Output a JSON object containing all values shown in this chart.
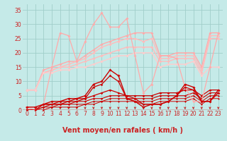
{
  "xlabel": "Vent moyen/en rafales ( km/h )",
  "ylim": [
    0,
    37
  ],
  "xlim": [
    -0.5,
    23.5
  ],
  "yticks": [
    0,
    5,
    10,
    15,
    20,
    25,
    30,
    35
  ],
  "xticks": [
    0,
    1,
    2,
    3,
    4,
    5,
    6,
    7,
    8,
    9,
    10,
    11,
    12,
    13,
    14,
    15,
    16,
    17,
    18,
    19,
    20,
    21,
    22,
    23
  ],
  "background_color": "#c5eae8",
  "grid_color": "#a0ceca",
  "tick_color": "#cc2222",
  "label_color": "#cc2222",
  "lines": [
    {
      "x": [
        0,
        1,
        2,
        3,
        4,
        5,
        6,
        7,
        8,
        9,
        10,
        11,
        12,
        13,
        14,
        15,
        16,
        17,
        18,
        19,
        20,
        21,
        22,
        23
      ],
      "y": [
        1,
        0,
        2,
        15,
        27,
        26,
        17,
        24,
        30,
        34,
        29,
        29,
        32,
        19,
        6,
        9,
        19,
        19,
        18,
        8,
        3,
        3,
        15,
        27
      ],
      "color": "#ffaaaa",
      "lw": 0.9,
      "marker": "D",
      "ms": 2.0,
      "zorder": 6
    },
    {
      "x": [
        0,
        1,
        2,
        3,
        4,
        5,
        6,
        7,
        8,
        9,
        10,
        11,
        12,
        13,
        14,
        15,
        16,
        17,
        18,
        19,
        20,
        21,
        22,
        23
      ],
      "y": [
        7,
        7,
        14,
        15,
        16,
        17,
        17,
        19,
        21,
        23,
        24,
        25,
        26,
        27,
        27,
        27,
        19,
        19,
        20,
        20,
        20,
        15,
        27,
        27
      ],
      "color": "#ffaaaa",
      "lw": 1.0,
      "marker": "D",
      "ms": 2.0,
      "zorder": 3
    },
    {
      "x": [
        0,
        1,
        2,
        3,
        4,
        5,
        6,
        7,
        8,
        9,
        10,
        11,
        12,
        13,
        14,
        15,
        16,
        17,
        18,
        19,
        20,
        21,
        22,
        23
      ],
      "y": [
        7,
        7,
        13,
        14,
        15,
        16,
        17,
        18,
        20,
        22,
        23,
        24,
        25,
        25,
        24,
        25,
        18,
        18,
        19,
        19,
        19,
        14,
        26,
        26
      ],
      "color": "#ffbbbb",
      "lw": 1.0,
      "marker": "D",
      "ms": 2.0,
      "zorder": 3
    },
    {
      "x": [
        0,
        1,
        2,
        3,
        4,
        5,
        6,
        7,
        8,
        9,
        10,
        11,
        12,
        13,
        14,
        15,
        16,
        17,
        18,
        19,
        20,
        21,
        22,
        23
      ],
      "y": [
        7,
        7,
        13,
        14,
        15,
        15,
        16,
        17,
        18,
        19,
        20,
        21,
        22,
        22,
        22,
        22,
        17,
        17,
        18,
        18,
        18,
        13,
        25,
        25
      ],
      "color": "#ffbbbb",
      "lw": 1.0,
      "marker": "D",
      "ms": 2.0,
      "zorder": 3
    },
    {
      "x": [
        0,
        1,
        2,
        3,
        4,
        5,
        6,
        7,
        8,
        9,
        10,
        11,
        12,
        13,
        14,
        15,
        16,
        17,
        18,
        19,
        20,
        21,
        22,
        23
      ],
      "y": [
        7,
        7,
        13,
        13,
        14,
        14,
        15,
        15,
        16,
        17,
        18,
        19,
        19,
        20,
        20,
        20,
        15,
        16,
        16,
        16,
        17,
        12,
        15,
        15
      ],
      "color": "#ffcccc",
      "lw": 1.0,
      "marker": "D",
      "ms": 2.0,
      "zorder": 3
    },
    {
      "x": [
        0,
        1,
        2,
        3,
        4,
        5,
        6,
        7,
        8,
        9,
        10,
        11,
        12,
        13,
        14,
        15,
        16,
        17,
        18,
        19,
        20,
        21,
        22,
        23
      ],
      "y": [
        1,
        1,
        2,
        3,
        3,
        4,
        4,
        5,
        9,
        10,
        14,
        12,
        4,
        3,
        1,
        2,
        2,
        3,
        5,
        9,
        8,
        3,
        3,
        7
      ],
      "color": "#cc0000",
      "lw": 1.0,
      "marker": "D",
      "ms": 2.0,
      "zorder": 7
    },
    {
      "x": [
        0,
        1,
        2,
        3,
        4,
        5,
        6,
        7,
        8,
        9,
        10,
        11,
        12,
        13,
        14,
        15,
        16,
        17,
        18,
        19,
        20,
        21,
        22,
        23
      ],
      "y": [
        0,
        0,
        2,
        2,
        3,
        3,
        4,
        4,
        8,
        9,
        12,
        10,
        4,
        4,
        2,
        2,
        2,
        3,
        5,
        8,
        7,
        3,
        3,
        6
      ],
      "color": "#cc0000",
      "lw": 0.9,
      "marker": "D",
      "ms": 1.8,
      "zorder": 6
    },
    {
      "x": [
        0,
        1,
        2,
        3,
        4,
        5,
        6,
        7,
        8,
        9,
        10,
        11,
        12,
        13,
        14,
        15,
        16,
        17,
        18,
        19,
        20,
        21,
        22,
        23
      ],
      "y": [
        0,
        0,
        2,
        2,
        2,
        3,
        3,
        4,
        5,
        6,
        7,
        6,
        5,
        5,
        5,
        5,
        6,
        6,
        6,
        7,
        7,
        5,
        7,
        7
      ],
      "color": "#cc0000",
      "lw": 0.9,
      "marker": "D",
      "ms": 1.8,
      "zorder": 5
    },
    {
      "x": [
        0,
        1,
        2,
        3,
        4,
        5,
        6,
        7,
        8,
        9,
        10,
        11,
        12,
        13,
        14,
        15,
        16,
        17,
        18,
        19,
        20,
        21,
        22,
        23
      ],
      "y": [
        0,
        0,
        1,
        2,
        2,
        2,
        3,
        3,
        4,
        4,
        5,
        5,
        5,
        4,
        4,
        4,
        5,
        5,
        5,
        5,
        6,
        4,
        6,
        6
      ],
      "color": "#cc0000",
      "lw": 0.8,
      "marker": "D",
      "ms": 1.6,
      "zorder": 5
    },
    {
      "x": [
        0,
        1,
        2,
        3,
        4,
        5,
        6,
        7,
        8,
        9,
        10,
        11,
        12,
        13,
        14,
        15,
        16,
        17,
        18,
        19,
        20,
        21,
        22,
        23
      ],
      "y": [
        0,
        0,
        1,
        1,
        2,
        2,
        2,
        2,
        3,
        3,
        4,
        4,
        4,
        3,
        3,
        3,
        4,
        4,
        4,
        4,
        5,
        3,
        5,
        5
      ],
      "color": "#cc0000",
      "lw": 0.7,
      "marker": "D",
      "ms": 1.5,
      "zorder": 4
    },
    {
      "x": [
        0,
        1,
        2,
        3,
        4,
        5,
        6,
        7,
        8,
        9,
        10,
        11,
        12,
        13,
        14,
        15,
        16,
        17,
        18,
        19,
        20,
        21,
        22,
        23
      ],
      "y": [
        0,
        0,
        0,
        1,
        1,
        1,
        1,
        2,
        2,
        3,
        3,
        3,
        3,
        3,
        2,
        2,
        3,
        3,
        3,
        3,
        4,
        2,
        4,
        4
      ],
      "color": "#cc0000",
      "lw": 0.7,
      "marker": "D",
      "ms": 1.4,
      "zorder": 4
    }
  ],
  "arrow_color": "#cc2222",
  "font_size_tick": 5.5,
  "font_size_label": 7
}
